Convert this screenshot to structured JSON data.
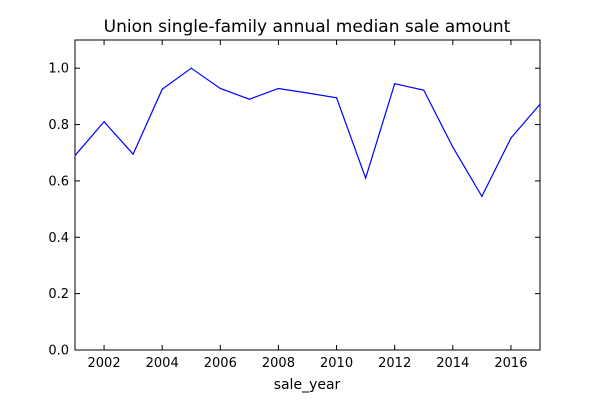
{
  "chart_data": {
    "type": "line",
    "title": "Union single-family annual median sale amount",
    "xlabel": "sale_year",
    "ylabel": "",
    "xlim": [
      2001,
      2017
    ],
    "ylim": [
      0.0,
      1.1
    ],
    "xticks": [
      2002,
      2004,
      2006,
      2008,
      2010,
      2012,
      2014,
      2016
    ],
    "yticks": [
      0.0,
      0.2,
      0.4,
      0.6,
      0.8,
      1.0
    ],
    "xtick_labels": [
      "2002",
      "2004",
      "2006",
      "2008",
      "2010",
      "2012",
      "2014",
      "2016"
    ],
    "ytick_labels": [
      "0.0",
      "0.2",
      "0.4",
      "0.6",
      "0.8",
      "1.0"
    ],
    "grid": false,
    "series": [
      {
        "color": "#0000ff",
        "x": [
          2001,
          2002,
          2003,
          2004,
          2005,
          2006,
          2007,
          2008,
          2009,
          2010,
          2011,
          2012,
          2013,
          2014,
          2015,
          2016,
          2017
        ],
        "y": [
          0.69,
          0.81,
          0.695,
          0.925,
          1.0,
          0.928,
          0.89,
          0.928,
          0.912,
          0.895,
          0.61,
          0.945,
          0.922,
          0.72,
          0.545,
          0.752,
          0.872
        ]
      }
    ]
  }
}
